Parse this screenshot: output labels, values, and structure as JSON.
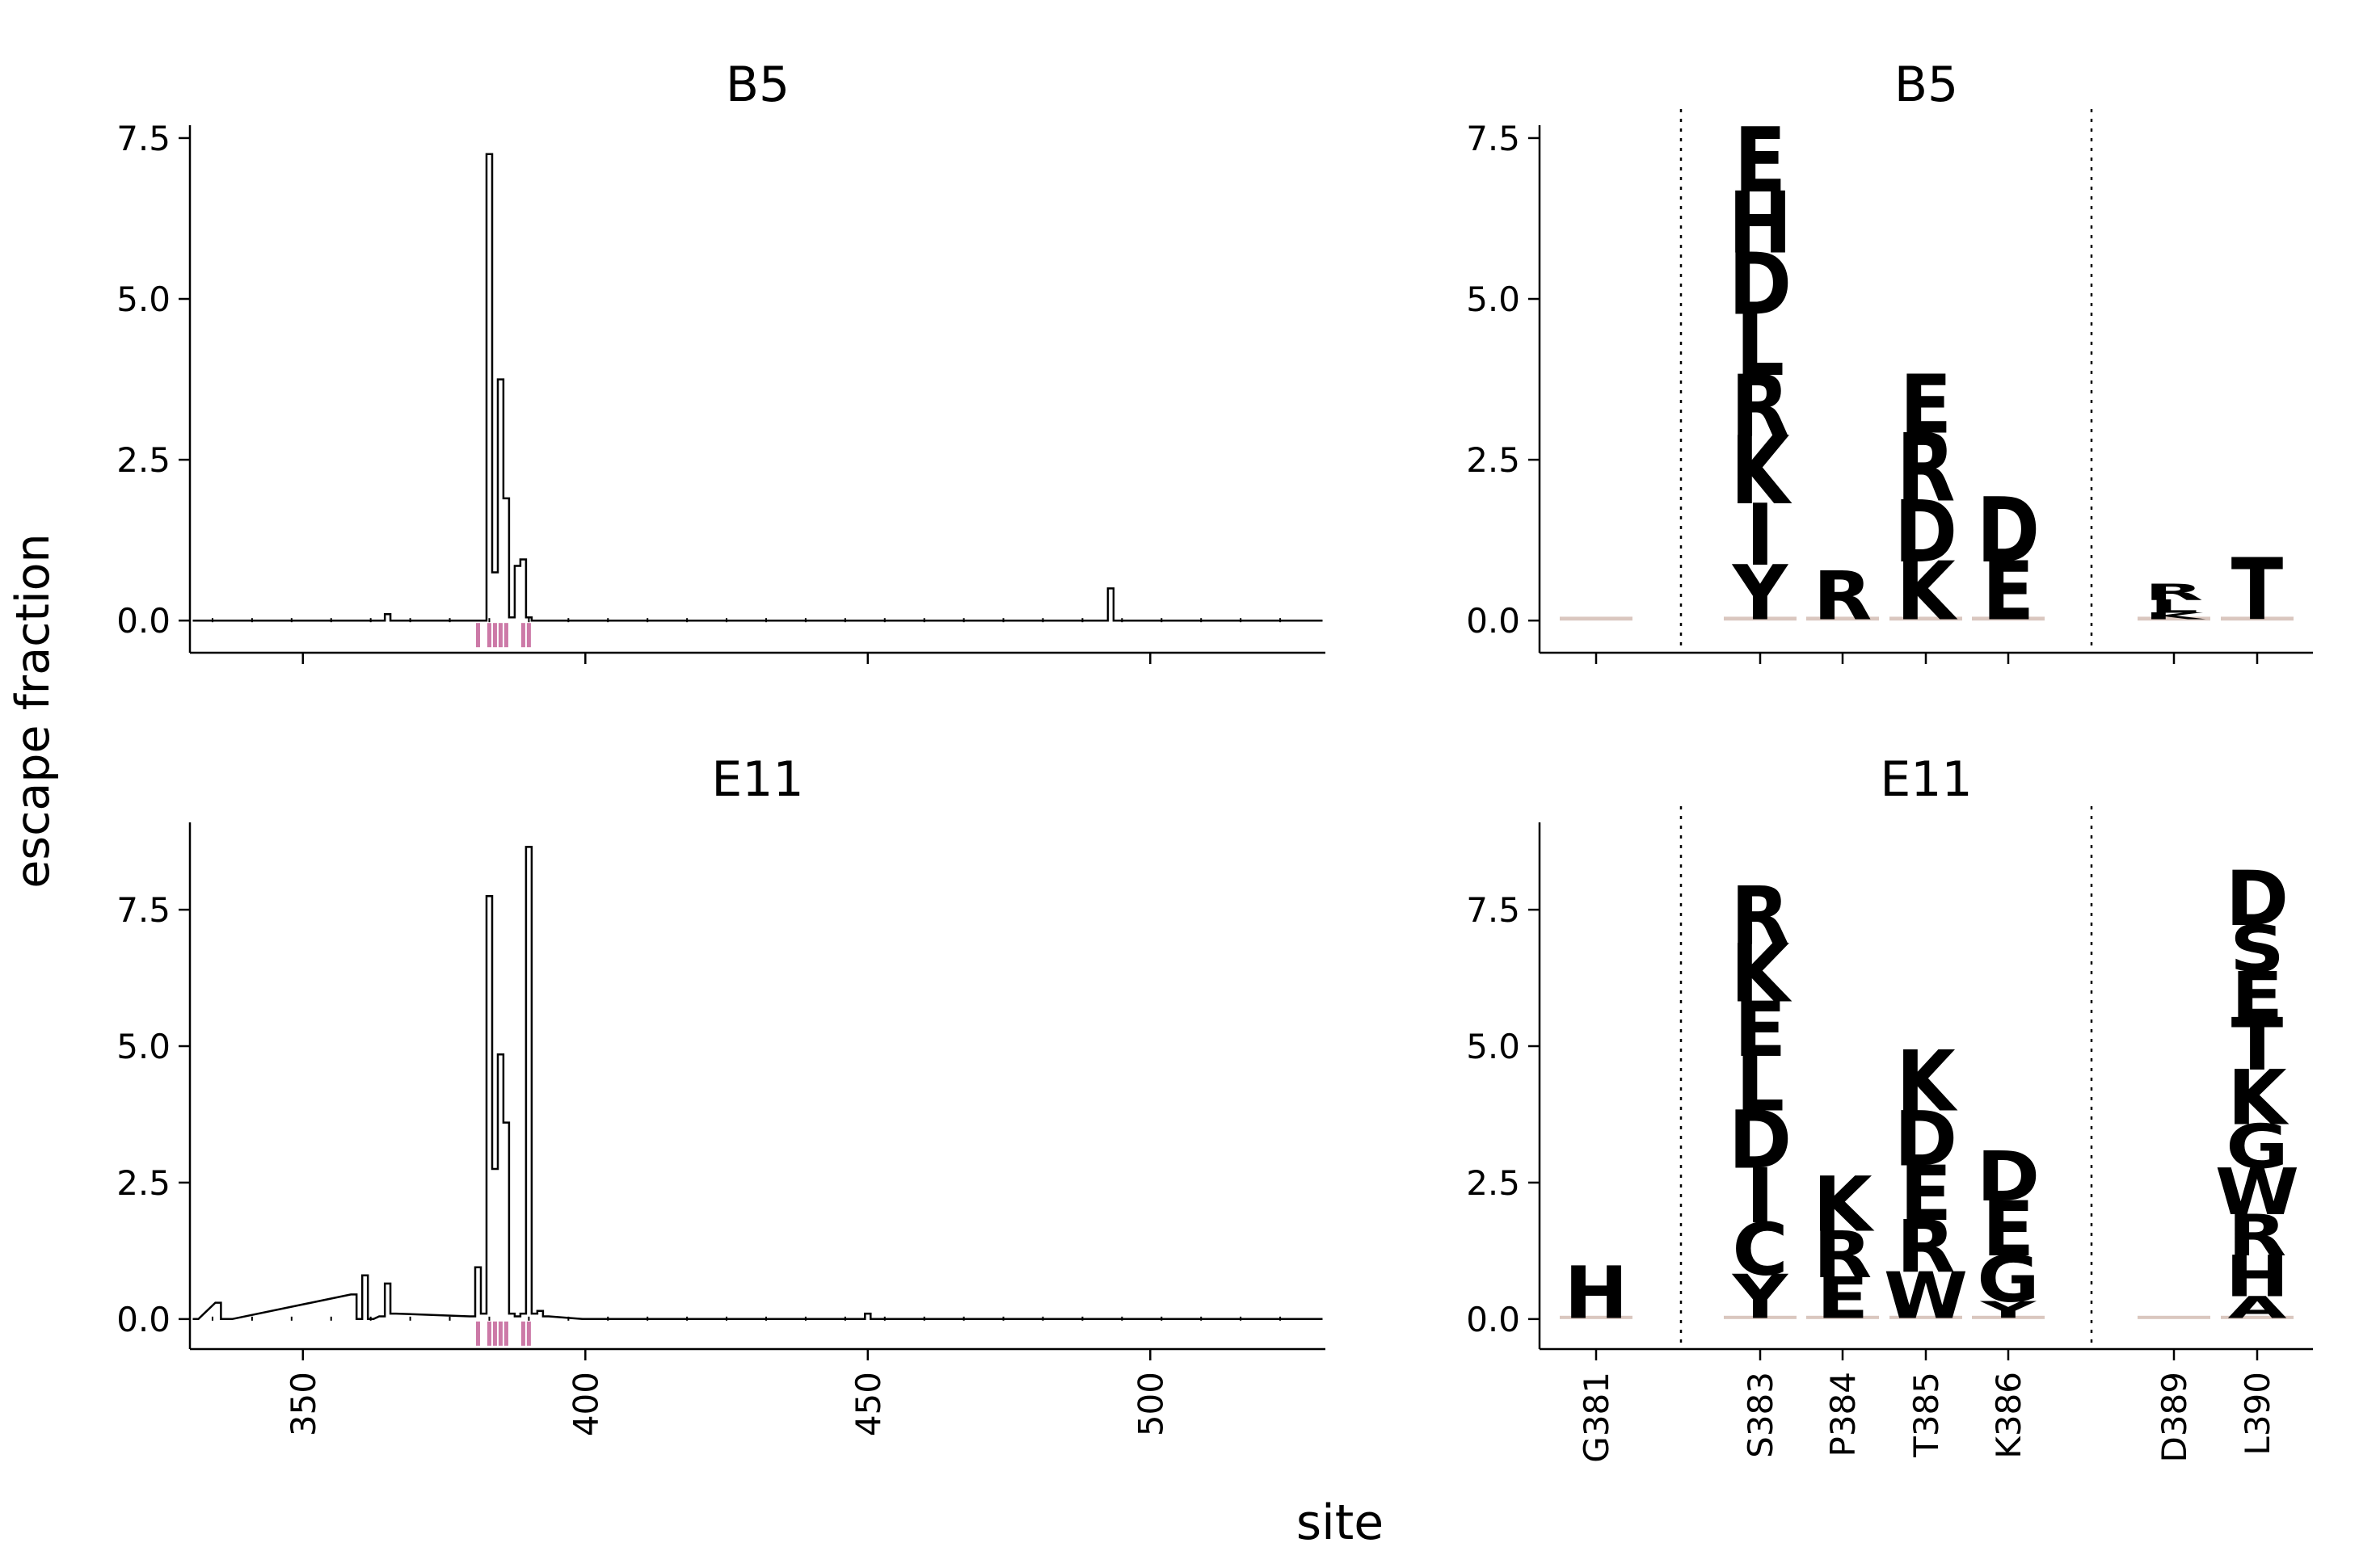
{
  "figure": {
    "ylabel": "escape fraction",
    "xlabel": "site",
    "colors": {
      "line": "#000000",
      "highlight": "#cc79a7",
      "letter": "#6a2100"
    }
  },
  "chart_data": [
    {
      "type": "line",
      "title": "B5",
      "xlim": [
        330,
        531
      ],
      "ylim": [
        -0.5,
        7.7
      ],
      "xticks": [
        350,
        400,
        450,
        500
      ],
      "xticklabels": [
        "",
        "",
        "",
        ""
      ],
      "yticks": [
        0,
        2.5,
        5,
        7.5
      ],
      "yticklabels": [
        "0.0",
        "2.5",
        "5.0",
        "7.5"
      ],
      "series": [
        {
          "x": [
            331,
            364,
            365,
            366,
            380,
            381,
            382,
            383,
            384,
            385,
            386,
            387,
            388,
            389,
            390,
            391,
            392,
            400,
            492,
            493,
            494,
            530
          ],
          "values": [
            0,
            0,
            0.1,
            0,
            0,
            0,
            0,
            7.25,
            0.75,
            3.75,
            1.9,
            0.05,
            0.85,
            0.95,
            0.05,
            0,
            0,
            0,
            0,
            0.5,
            0,
            0
          ]
        }
      ],
      "highlight_sites": [
        381,
        383,
        384,
        385,
        386,
        389,
        390
      ]
    },
    {
      "type": "logo",
      "title": "B5",
      "ylim": [
        -0.5,
        7.7
      ],
      "yticks": [
        0,
        2.5,
        5,
        7.5
      ],
      "yticklabels": [
        "0.0",
        "2.5",
        "5.0",
        "7.5"
      ],
      "sites": [
        "G381",
        "S383",
        "P384",
        "T385",
        "K386",
        "D389",
        "L390"
      ],
      "stacks": [
        [],
        [
          {
            "l": "Y",
            "v": 0.85
          },
          {
            "l": "I",
            "v": 0.95
          },
          {
            "l": "K",
            "v": 1.05
          },
          {
            "l": "R",
            "v": 0.95
          },
          {
            "l": "L",
            "v": 0.95
          },
          {
            "l": "D",
            "v": 0.95
          },
          {
            "l": "H",
            "v": 0.95
          },
          {
            "l": "E",
            "v": 1.0
          }
        ],
        [
          {
            "l": "R",
            "v": 0.75
          }
        ],
        [
          {
            "l": "K",
            "v": 0.9
          },
          {
            "l": "D",
            "v": 0.95
          },
          {
            "l": "R",
            "v": 1.05
          },
          {
            "l": "E",
            "v": 0.9
          }
        ],
        [
          {
            "l": "E",
            "v": 0.9
          },
          {
            "l": "D",
            "v": 1.0
          }
        ],
        [
          {
            "l": "K",
            "v": 0.1
          },
          {
            "l": "L",
            "v": 0.2
          },
          {
            "l": "R",
            "v": 0.25
          }
        ],
        [
          {
            "l": "T",
            "v": 0.95
          }
        ]
      ]
    },
    {
      "type": "line",
      "title": "E11",
      "xlim": [
        330,
        531
      ],
      "ylim": [
        -0.55,
        9.1
      ],
      "xticks": [
        350,
        400,
        450,
        500
      ],
      "xticklabels": [
        "350",
        "400",
        "450",
        "500"
      ],
      "yticks": [
        0,
        2.5,
        5,
        7.5
      ],
      "yticklabels": [
        "0.0",
        "2.5",
        "5.0",
        "7.5"
      ],
      "series": [
        {
          "x": [
            331,
            335,
            336,
            337,
            359,
            360,
            361,
            362,
            364,
            365,
            366,
            380,
            381,
            382,
            383,
            384,
            385,
            386,
            387,
            388,
            389,
            390,
            391,
            392,
            393,
            400,
            449,
            450,
            451,
            530
          ],
          "values": [
            0,
            0.3,
            0,
            0,
            0.45,
            0,
            0.8,
            0,
            0.05,
            0.65,
            0.1,
            0.05,
            0.95,
            0.1,
            7.75,
            2.75,
            4.85,
            3.6,
            0.1,
            0.05,
            0.1,
            8.65,
            0.1,
            0.15,
            0.05,
            0,
            0,
            0.1,
            0,
            0
          ]
        }
      ],
      "highlight_sites": [
        381,
        383,
        384,
        385,
        386,
        389,
        390
      ]
    },
    {
      "type": "logo",
      "title": "E11",
      "ylim": [
        -0.55,
        9.1
      ],
      "yticks": [
        0,
        2.5,
        5,
        7.5
      ],
      "yticklabels": [
        "0.0",
        "2.5",
        "5.0",
        "7.5"
      ],
      "sites": [
        "G381",
        "S383",
        "P384",
        "T385",
        "K386",
        "D389",
        "L390"
      ],
      "xticklabels": [
        "G381",
        "S383",
        "P384",
        "T385",
        "K386",
        "D389",
        "L390"
      ],
      "stacks": [
        [
          {
            "l": "H",
            "v": 0.95
          }
        ],
        [
          {
            "l": "Y",
            "v": 0.8
          },
          {
            "l": "C",
            "v": 0.95
          },
          {
            "l": "I",
            "v": 1.0
          },
          {
            "l": "D",
            "v": 1.05
          },
          {
            "l": "L",
            "v": 1.0
          },
          {
            "l": "E",
            "v": 1.0
          },
          {
            "l": "K",
            "v": 1.05
          },
          {
            "l": "R",
            "v": 1.05
          }
        ],
        [
          {
            "l": "E",
            "v": 0.75
          },
          {
            "l": "R",
            "v": 0.85
          },
          {
            "l": "K",
            "v": 1.0
          }
        ],
        [
          {
            "l": "W",
            "v": 0.85
          },
          {
            "l": "R",
            "v": 0.95
          },
          {
            "l": "E",
            "v": 1.0
          },
          {
            "l": "D",
            "v": 1.0
          },
          {
            "l": "K",
            "v": 1.1
          }
        ],
        [
          {
            "l": "Y",
            "v": 0.3
          },
          {
            "l": "G",
            "v": 0.85
          },
          {
            "l": "E",
            "v": 1.0
          },
          {
            "l": "D",
            "v": 0.9
          }
        ],
        [],
        [
          {
            "l": "A",
            "v": 0.4
          },
          {
            "l": "H",
            "v": 0.75
          },
          {
            "l": "R",
            "v": 0.75
          },
          {
            "l": "W",
            "v": 0.85
          },
          {
            "l": "G",
            "v": 0.8
          },
          {
            "l": "K",
            "v": 1.0
          },
          {
            "l": "T",
            "v": 0.95
          },
          {
            "l": "E",
            "v": 0.85
          },
          {
            "l": "S",
            "v": 0.85
          },
          {
            "l": "D",
            "v": 1.0
          }
        ]
      ]
    }
  ]
}
